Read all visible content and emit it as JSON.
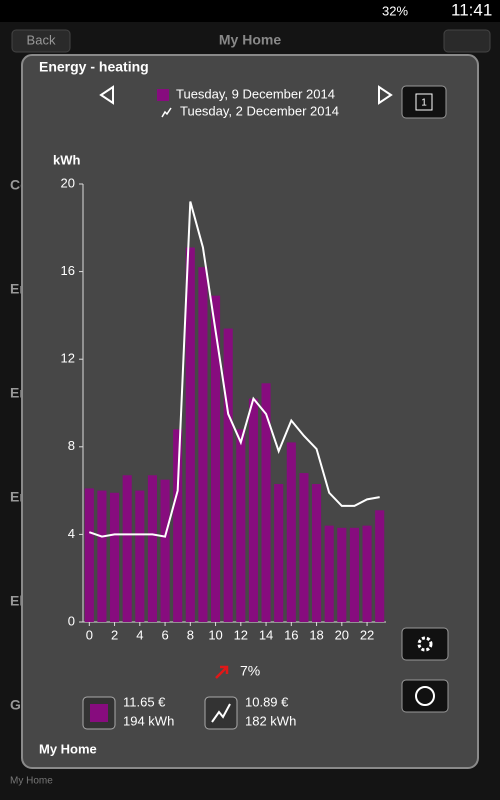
{
  "status_bar": {
    "battery": "32%",
    "time": "11:41"
  },
  "app_header": {
    "back": "Back",
    "title": "My Home"
  },
  "background_items": [
    "Co",
    "En",
    "En",
    "En",
    "El",
    "Ga"
  ],
  "background_footer": "My Home",
  "dialog": {
    "title": "Energy - heating",
    "calendar_day": "1",
    "trend": "7%",
    "footer": "My Home",
    "summary": [
      {
        "cost": "11.65 €",
        "energy": "194 kWh"
      },
      {
        "cost": "10.89 €",
        "energy": "182 kWh"
      }
    ]
  },
  "chart_data": {
    "type": "bar",
    "y_label": "kWh",
    "x": [
      0,
      1,
      2,
      3,
      4,
      5,
      6,
      7,
      8,
      9,
      10,
      11,
      12,
      13,
      14,
      15,
      16,
      17,
      18,
      19,
      20,
      21,
      22,
      23
    ],
    "series": [
      {
        "name": "Tuesday, 9 December 2014",
        "type": "bar",
        "color": "#870c7e",
        "values": [
          6.1,
          6.0,
          5.9,
          6.7,
          6.0,
          6.7,
          6.5,
          8.8,
          17.1,
          16.2,
          14.9,
          13.4,
          8.8,
          10.2,
          10.9,
          6.3,
          8.2,
          6.8,
          6.3,
          4.4,
          4.3,
          4.3,
          4.4,
          5.1
        ]
      },
      {
        "name": "Tuesday, 2 December 2014",
        "type": "line",
        "color": "#ffffff",
        "values": [
          4.1,
          3.9,
          4.0,
          4.0,
          4.0,
          4.0,
          3.9,
          6.0,
          19.2,
          17.1,
          13.3,
          9.5,
          8.2,
          10.2,
          9.5,
          7.8,
          9.2,
          8.5,
          7.9,
          5.9,
          5.3,
          5.3,
          5.6,
          5.7
        ]
      }
    ],
    "xlim": [
      -0.5,
      23.5
    ],
    "xticks": [
      0,
      2,
      4,
      6,
      8,
      10,
      12,
      14,
      16,
      18,
      20,
      22
    ],
    "ylim": [
      0,
      20
    ],
    "yticks": [
      0,
      4,
      8,
      12,
      16,
      20
    ]
  }
}
